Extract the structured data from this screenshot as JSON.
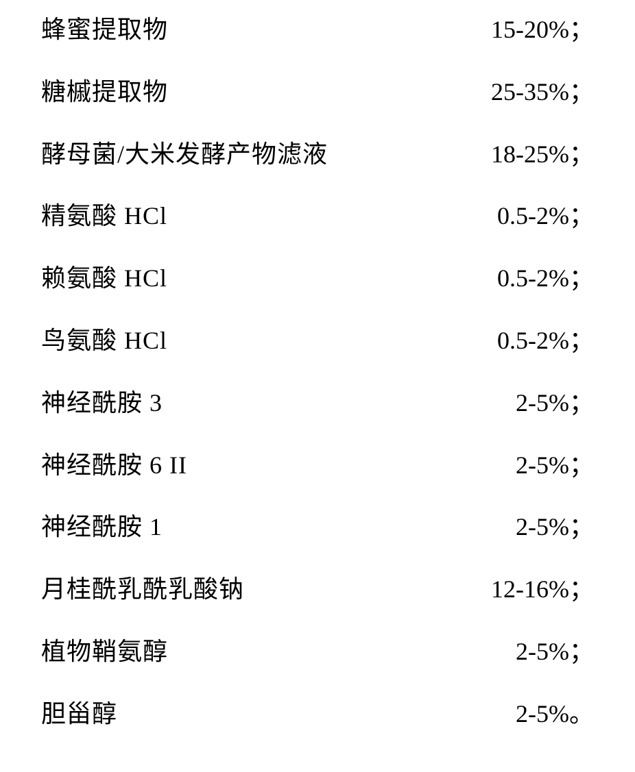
{
  "ingredients": {
    "rows": [
      {
        "label": "蜂蜜提取物",
        "value": "15-20%；"
      },
      {
        "label": "糖槭提取物",
        "value": "25-35%；"
      },
      {
        "label": "酵母菌/大米发酵产物滤液",
        "value": "18-25%；"
      },
      {
        "label": "精氨酸  HCl",
        "value": "0.5-2%；"
      },
      {
        "label": "赖氨酸  HCl",
        "value": "0.5-2%；"
      },
      {
        "label": "鸟氨酸  HCl",
        "value": "0.5-2%；"
      },
      {
        "label": "神经酰胺  3",
        "value": "2-5%；"
      },
      {
        "label": "神经酰胺  6 II",
        "value": "2-5%；"
      },
      {
        "label": "神经酰胺  1",
        "value": "2-5%；"
      },
      {
        "label": "月桂酰乳酰乳酸钠",
        "value": "12-16%；"
      },
      {
        "label": "植物鞘氨醇",
        "value": "2-5%；"
      },
      {
        "label": "胆甾醇",
        "value": "2-5%。"
      }
    ],
    "font_size": 36,
    "text_color": "#000000",
    "background_color": "#ffffff",
    "row_spacing": 44
  }
}
